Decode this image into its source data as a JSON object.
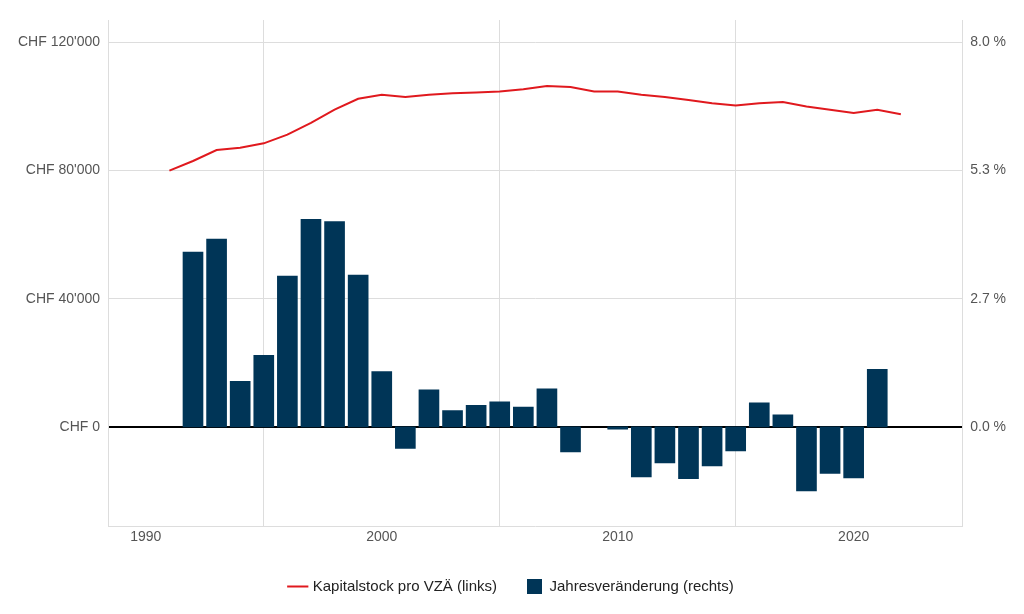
{
  "chart_data": {
    "type": "bar",
    "x": [
      1991,
      1992,
      1993,
      1994,
      1995,
      1996,
      1997,
      1998,
      1999,
      2000,
      2001,
      2002,
      2003,
      2004,
      2005,
      2006,
      2007,
      2008,
      2009,
      2010,
      2011,
      2012,
      2013,
      2014,
      2015,
      2016,
      2017,
      2018,
      2019,
      2020,
      2021,
      2022
    ],
    "series": [
      {
        "name": "Kapitalstock pro VZÄ (links)",
        "type": "line",
        "color": "#e0191e",
        "axis": "y",
        "values": [
          80000,
          83000,
          86400,
          87100,
          88500,
          91200,
          94900,
          99000,
          102400,
          103700,
          103000,
          103700,
          104100,
          104400,
          104700,
          105400,
          106400,
          106100,
          104700,
          104700,
          103700,
          103000,
          102000,
          101000,
          100300,
          101000,
          101400,
          100000,
          99000,
          98000,
          99000,
          97600
        ]
      },
      {
        "name": "Jahresveränderung (rechts)",
        "type": "bar",
        "color": "#003557",
        "axis": "y2",
        "values": [
          null,
          3.64,
          3.91,
          0.95,
          1.49,
          3.14,
          4.32,
          4.27,
          3.16,
          1.15,
          -0.45,
          0.77,
          0.34,
          0.45,
          0.52,
          0.41,
          0.79,
          -0.52,
          null,
          -0.05,
          -1.04,
          -0.75,
          -1.08,
          -0.81,
          -0.5,
          0.5,
          0.25,
          -1.33,
          -0.97,
          -1.06,
          1.2,
          null
        ]
      }
    ],
    "xlim": [
      1988.4,
      2024.6
    ],
    "xticks": [
      1990,
      2000,
      2010,
      2020
    ],
    "ylim": [
      -31000,
      127000
    ],
    "yticks": [
      {
        "value": 0,
        "label": "CHF 0"
      },
      {
        "value": 40000,
        "label": "CHF 40'000"
      },
      {
        "value": 80000,
        "label": "CHF 80'000"
      },
      {
        "value": 120000,
        "label": "CHF 120'000"
      }
    ],
    "y2lim": [
      -2.0667,
      8.4667
    ],
    "y2ticks": [
      {
        "value": 0,
        "label": "0.0 %"
      },
      {
        "value": 2.6667,
        "label": "2.7 %"
      },
      {
        "value": 5.3333,
        "label": "5.3 %"
      },
      {
        "value": 8,
        "label": "8.0 %"
      }
    ],
    "grid": true,
    "legend": "bottom"
  }
}
